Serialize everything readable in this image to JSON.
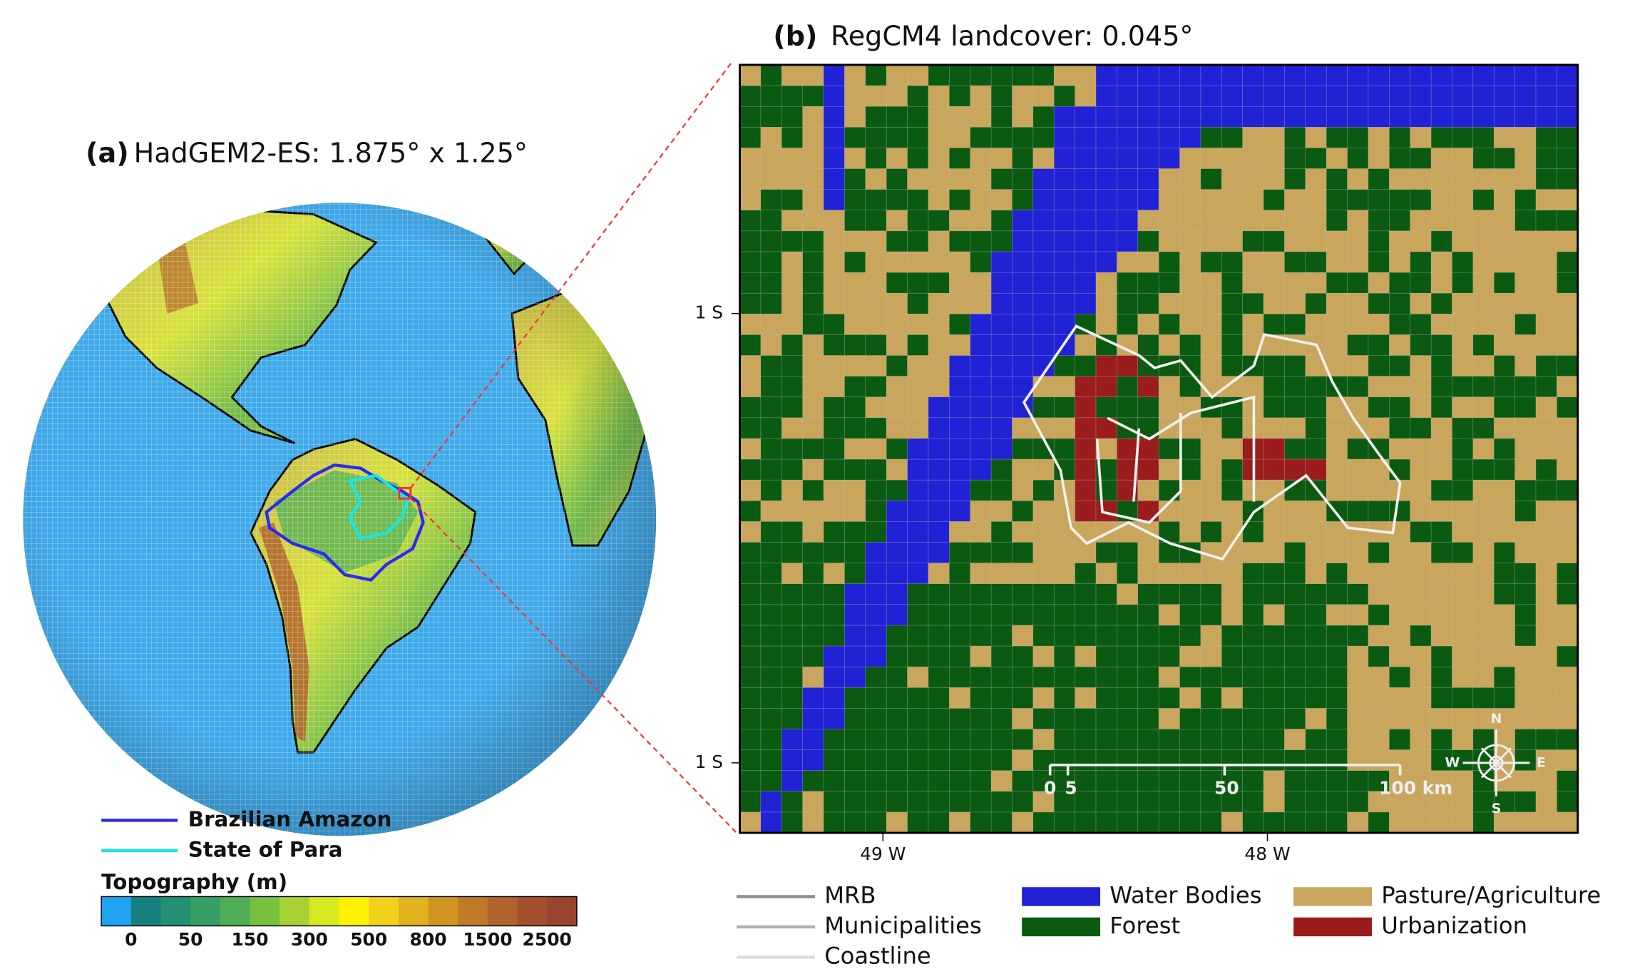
{
  "panel_a": {
    "label": "(a)",
    "title": "HadGEM2-ES: 1.875° x 1.25°",
    "legend": [
      {
        "name": "Brazilian Amazon",
        "color": "#2b2bf0"
      },
      {
        "name": "State of Para",
        "color": "#19e6e6"
      }
    ],
    "colorbar": {
      "title": "Topography (m)",
      "labels": [
        "0",
        "50",
        "150",
        "300",
        "500",
        "800",
        "1500",
        "2500"
      ],
      "colors": [
        "#1fa3f0",
        "#17807e",
        "#238f74",
        "#35a063",
        "#4fae55",
        "#78c040",
        "#a6d232",
        "#d6e81f",
        "#fff200",
        "#f0d21c",
        "#e0b21e",
        "#d09521",
        "#c07a27",
        "#b0632c",
        "#a4502f",
        "#9a4430"
      ]
    }
  },
  "panel_b": {
    "label": "(b)",
    "title": "RegCM4 landcover: 0.045°",
    "y_labels": [
      "1 S",
      "1 S"
    ],
    "x_labels": [
      "49 W",
      "48 W"
    ],
    "scale_bar": [
      "0",
      "5",
      "50",
      "100 km"
    ],
    "compass": {
      "n": "N",
      "s": "S",
      "w": "W",
      "e": "E"
    },
    "line_legend": [
      {
        "name": "MRB",
        "color": "#8c8c8c"
      },
      {
        "name": "Municipalities",
        "color": "#b0b0b0"
      },
      {
        "name": "Coastline",
        "color": "#dcdcdc"
      }
    ],
    "classes": [
      {
        "name": "Water Bodies",
        "color": "#2121d6"
      },
      {
        "name": "Forest",
        "color": "#0b5a12"
      },
      {
        "name": "Pasture/Agriculture",
        "color": "#c9a65c"
      },
      {
        "name": "Urbanization",
        "color": "#9b1c1c"
      }
    ]
  }
}
